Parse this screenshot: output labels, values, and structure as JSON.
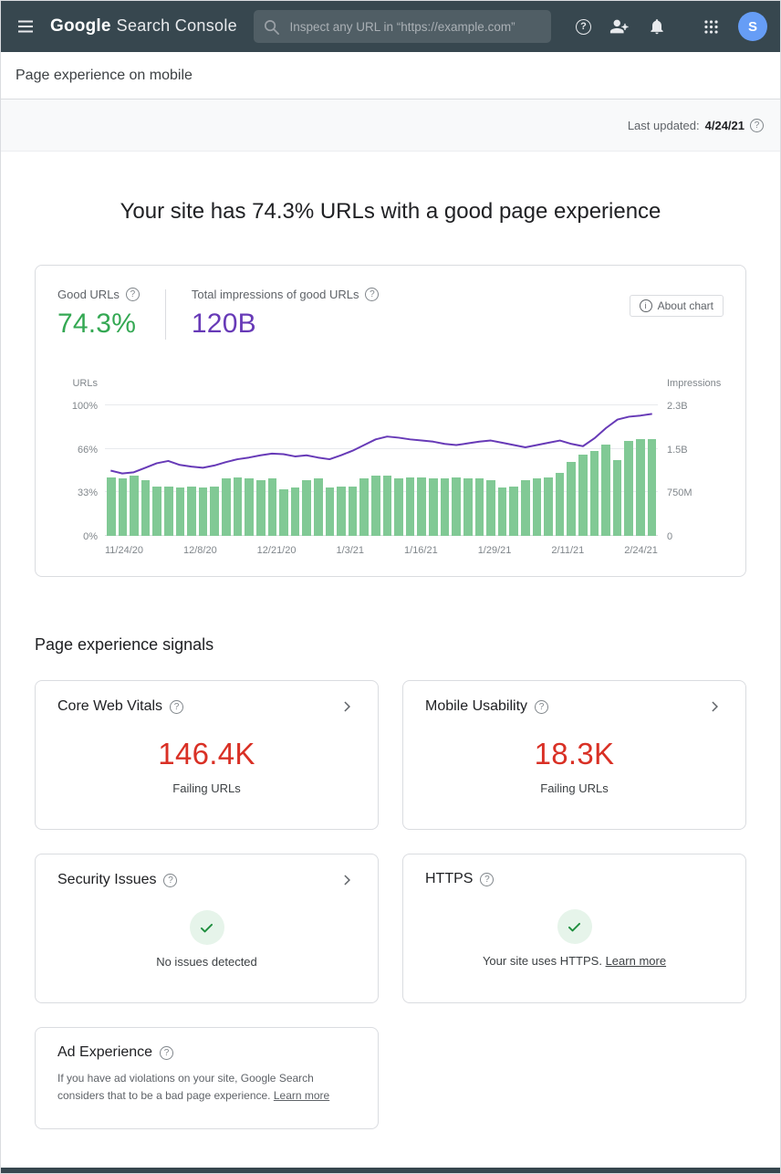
{
  "colors": {
    "header_bg": "#37474f",
    "avatar_blue": "#669df6",
    "accent_green": "#34a853",
    "accent_purple": "#673ab7",
    "bar_green": "#81c995",
    "error_red": "#d93025",
    "success_green": "#1e8e3e",
    "success_bg": "#e6f4ea",
    "border": "#dadce0"
  },
  "header": {
    "logo_primary": "Google",
    "logo_secondary": "Search Console",
    "search_placeholder": "Inspect any URL in “https://example.com”",
    "avatar_letter": "S"
  },
  "breadcrumb": {
    "label": "Page experience on mobile"
  },
  "status_bar": {
    "last_updated_label": "Last updated:",
    "last_updated_value": "4/24/21"
  },
  "hero": {
    "title": "Your site has 74.3% URLs with a good page experience"
  },
  "summary": {
    "good_urls_label": "Good URLs",
    "good_urls_value": "74.3%",
    "impressions_label": "Total impressions of good URLs",
    "impressions_value": "120B",
    "about_chart": "About chart"
  },
  "chart_data": {
    "type": "bar+line",
    "title": "Good page experience URLs and impressions over time",
    "x_tick_labels": [
      "11/24/20",
      "12/8/20",
      "12/21/20",
      "1/3/21",
      "1/16/21",
      "1/29/21",
      "2/11/21",
      "2/24/21"
    ],
    "left_axis": {
      "title": "URLs",
      "ticks": [
        "0%",
        "33%",
        "66%",
        "100%"
      ],
      "max": 100
    },
    "right_axis": {
      "title": "Impressions",
      "ticks": [
        "0",
        "750M",
        "1.5B",
        "2.3B"
      ],
      "max_billions": 2.3
    },
    "grid": true,
    "legend_position": "none",
    "series": [
      {
        "name": "Good URLs",
        "type": "bar",
        "unit": "% of URLs",
        "color": "#81c995",
        "values": [
          45,
          44,
          46,
          43,
          38,
          38,
          37,
          38,
          37,
          38,
          44,
          45,
          44,
          43,
          44,
          36,
          37,
          43,
          44,
          37,
          38,
          38,
          44,
          46,
          46,
          44,
          45,
          45,
          44,
          44,
          45,
          44,
          44,
          43,
          37,
          38,
          43,
          44,
          45,
          48,
          57,
          62,
          65,
          70,
          58,
          73,
          74,
          74
        ]
      },
      {
        "name": "Impressions of good URLs",
        "type": "line",
        "unit": "billions",
        "color": "#673ab7",
        "values": [
          1.15,
          1.1,
          1.12,
          1.2,
          1.28,
          1.32,
          1.25,
          1.22,
          1.2,
          1.24,
          1.3,
          1.35,
          1.38,
          1.42,
          1.45,
          1.44,
          1.4,
          1.42,
          1.38,
          1.35,
          1.42,
          1.5,
          1.6,
          1.7,
          1.75,
          1.73,
          1.7,
          1.68,
          1.66,
          1.62,
          1.6,
          1.63,
          1.66,
          1.68,
          1.64,
          1.6,
          1.56,
          1.6,
          1.64,
          1.68,
          1.62,
          1.58,
          1.72,
          1.9,
          2.05,
          2.1,
          2.12,
          2.15
        ]
      }
    ]
  },
  "signals": {
    "heading": "Page experience signals",
    "cards": [
      {
        "title": "Core Web Vitals",
        "value": "146.4K",
        "caption": "Failing URLs"
      },
      {
        "title": "Mobile Usability",
        "value": "18.3K",
        "caption": "Failing URLs"
      },
      {
        "title": "Security Issues",
        "caption": "No issues detected"
      },
      {
        "title": "HTTPS",
        "caption": "Your site uses HTTPS.",
        "link": "Learn more"
      },
      {
        "title": "Ad Experience",
        "body": "If you have ad violations on your site, Google Search considers that to be a bad page experience.",
        "link": "Learn more"
      }
    ]
  }
}
